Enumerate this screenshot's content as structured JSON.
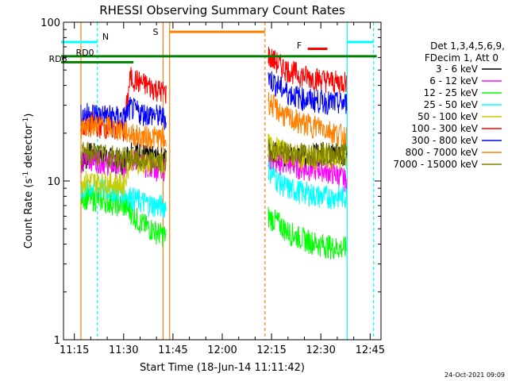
{
  "chart_data": {
    "type": "line",
    "title": "RHESSI Observing Summary Count Rates",
    "xlabel": "Start Time (18-Jun-14 11:11:42)",
    "ylabel_main": "Count Rate (s",
    "ylabel_sup": "-1",
    "ylabel_tail": " detector",
    "ylabel_sup2": "-1",
    "ylabel_end": ")",
    "yscale": "log",
    "ylim": [
      1,
      100
    ],
    "x_ticks": [
      "11:15",
      "11:30",
      "11:45",
      "12:00",
      "12:15",
      "12:30",
      "12:45"
    ],
    "y_ticks": [
      "1",
      "10",
      "100"
    ],
    "legend_header": [
      "Det 1,3,4,5,6,9,",
      "FDecim 1, Att 0"
    ],
    "legend": [
      {
        "label": "3 - 6 keV",
        "color": "#000000"
      },
      {
        "label": "6 - 12 keV",
        "color": "#ff00ff"
      },
      {
        "label": "12 - 25 keV",
        "color": "#00ff00"
      },
      {
        "label": "25 - 50 keV",
        "color": "#00ffff"
      },
      {
        "label": "50 - 100 keV",
        "color": "#cccc00"
      },
      {
        "label": "100 - 300 keV",
        "color": "#ff0000"
      },
      {
        "label": "300 - 800 keV",
        "color": "#0000ff"
      },
      {
        "label": "800 - 7000 keV",
        "color": "#ff8000"
      },
      {
        "label": "7000 - 15000 keV",
        "color": "#808000"
      }
    ],
    "flags": [
      {
        "label": "N",
        "color": "#00ffff"
      },
      {
        "label": "S",
        "color": "#ff8000"
      },
      {
        "label": "F",
        "color": "#ff0000"
      },
      {
        "label": "RD0",
        "color": "#008000"
      },
      {
        "label": "RD6",
        "color": "#008000"
      }
    ],
    "series": [
      {
        "name": "3 - 6 keV",
        "color": "#000000",
        "segments": [
          {
            "x": [
              "11:17",
              "11:20",
              "11:25",
              "11:30",
              "11:32",
              "11:35",
              "11:40",
              "11:43"
            ],
            "y": [
              13,
              15,
              14,
              13,
              16,
              15,
              14,
              14
            ]
          },
          {
            "x": [
              "12:14",
              "12:17",
              "12:20",
              "12:25",
              "12:30",
              "12:35",
              "12:38"
            ],
            "y": [
              16,
              15,
              14,
              14,
              15,
              15,
              15
            ]
          }
        ]
      },
      {
        "name": "6 - 12 keV",
        "color": "#ff00ff",
        "segments": [
          {
            "x": [
              "11:17",
              "11:20",
              "11:25",
              "11:30",
              "11:32",
              "11:35",
              "11:40",
              "11:43"
            ],
            "y": [
              13,
              14,
              13,
              12,
              14,
              13,
              12,
              12
            ]
          },
          {
            "x": [
              "12:14",
              "12:17",
              "12:20",
              "12:25",
              "12:30",
              "12:35",
              "12:38"
            ],
            "y": [
              14,
              13,
              13,
              12,
              12,
              11,
              10
            ]
          }
        ]
      },
      {
        "name": "12 - 25 keV",
        "color": "#00ff00",
        "segments": [
          {
            "x": [
              "11:17",
              "11:20",
              "11:25",
              "11:30",
              "11:32",
              "11:35",
              "11:40",
              "11:43"
            ],
            "y": [
              8,
              7.8,
              7.5,
              7,
              6.5,
              5.5,
              4.8,
              4.5
            ]
          },
          {
            "x": [
              "12:14",
              "12:17",
              "12:20",
              "12:25",
              "12:30",
              "12:35",
              "12:38"
            ],
            "y": [
              6,
              5.5,
              4.8,
              4.3,
              4.0,
              3.8,
              3.8
            ]
          }
        ]
      },
      {
        "name": "25 - 50 keV",
        "color": "#00ffff",
        "segments": [
          {
            "x": [
              "11:17",
              "11:20",
              "11:25",
              "11:30",
              "11:32",
              "11:35",
              "11:40",
              "11:43"
            ],
            "y": [
              9,
              9.2,
              9,
              8.5,
              8,
              7.5,
              7,
              7
            ]
          },
          {
            "x": [
              "12:14",
              "12:17",
              "12:20",
              "12:25",
              "12:30",
              "12:35",
              "12:38"
            ],
            "y": [
              12,
              10,
              9,
              8.5,
              8,
              8,
              8
            ]
          }
        ]
      },
      {
        "name": "50 - 100 keV",
        "color": "#cccc00",
        "segments": [
          {
            "x": [
              "11:17",
              "11:20",
              "11:25",
              "11:30",
              "11:32",
              "11:35",
              "11:40",
              "11:43"
            ],
            "y": [
              10,
              10,
              9.8,
              9.5,
              14,
              13,
              13,
              13
            ]
          },
          {
            "x": [
              "12:14",
              "12:17",
              "12:20",
              "12:25",
              "12:30",
              "12:35",
              "12:38"
            ],
            "y": [
              17,
              16,
              15,
              14,
              14,
              14,
              14
            ]
          }
        ]
      },
      {
        "name": "100 - 300 keV",
        "color": "#ff0000",
        "segments": [
          {
            "x": [
              "11:17",
              "11:20",
              "11:25",
              "11:30",
              "11:32",
              "11:35",
              "11:40",
              "11:43"
            ],
            "y": [
              22,
              23,
              22,
              21,
              45,
              42,
              38,
              36
            ]
          },
          {
            "x": [
              "12:14",
              "12:17",
              "12:20",
              "12:25",
              "12:30",
              "12:35",
              "12:38"
            ],
            "y": [
              62,
              55,
              50,
              46,
              44,
              42,
              43
            ]
          }
        ]
      },
      {
        "name": "300 - 800 keV",
        "color": "#0000ff",
        "segments": [
          {
            "x": [
              "11:17",
              "11:20",
              "11:25",
              "11:30",
              "11:32",
              "11:35",
              "11:40",
              "11:43"
            ],
            "y": [
              26,
              27,
              26,
              25,
              29,
              27,
              26,
              25
            ]
          },
          {
            "x": [
              "12:14",
              "12:17",
              "12:20",
              "12:25",
              "12:30",
              "12:35",
              "12:38"
            ],
            "y": [
              45,
              40,
              36,
              33,
              32,
              31,
              31
            ]
          }
        ]
      },
      {
        "name": "800 - 7000 keV",
        "color": "#ff8000",
        "segments": [
          {
            "x": [
              "11:17",
              "11:20",
              "11:25",
              "11:30",
              "11:32",
              "11:35",
              "11:40",
              "11:43"
            ],
            "y": [
              22,
              23,
              22,
              21,
              20,
              19,
              19,
              18
            ]
          },
          {
            "x": [
              "12:14",
              "12:17",
              "12:20",
              "12:25",
              "12:30",
              "12:35",
              "12:38"
            ],
            "y": [
              32,
              28,
              25,
              23,
              22,
              20,
              19
            ]
          }
        ]
      },
      {
        "name": "7000 - 15000 keV",
        "color": "#808000",
        "segments": [
          {
            "x": [
              "11:17",
              "11:20",
              "11:25",
              "11:30",
              "11:32",
              "11:35",
              "11:40",
              "11:43"
            ],
            "y": [
              15,
              15,
              14.5,
              14,
              14,
              13.5,
              13,
              13
            ]
          },
          {
            "x": [
              "12:14",
              "12:17",
              "12:20",
              "12:25",
              "12:30",
              "12:35",
              "12:38"
            ],
            "y": [
              16,
              15.5,
              15,
              15,
              15,
              15,
              15
            ]
          }
        ]
      }
    ],
    "bars": [
      {
        "name": "N",
        "color": "#00ffff",
        "x_start": "11:11",
        "x_end": "11:22",
        "y": 75
      },
      {
        "name": "S",
        "color": "#ff8000",
        "x_start": "11:44",
        "x_end": "12:13",
        "y": 87
      },
      {
        "name": "F",
        "color": "#ff0000",
        "x_start": "12:26",
        "x_end": "12:32",
        "y": 68
      },
      {
        "name": "N",
        "color": "#00ffff",
        "x_start": "12:38",
        "x_end": "12:46",
        "y": 75
      },
      {
        "name": "RD0",
        "color": "#008000",
        "x_start": "11:11",
        "x_end": "12:47",
        "y": 61
      },
      {
        "name": "RD6",
        "color": "#008000",
        "x_start": "11:11",
        "x_end": "11:33",
        "y": 56
      }
    ],
    "vlines": [
      {
        "x": "11:11",
        "color": "#00ffff",
        "dash": false
      },
      {
        "x": "11:22",
        "color": "#00ffff",
        "dash": true
      },
      {
        "x": "11:17",
        "color": "#ff8000",
        "dash": false
      },
      {
        "x": "11:42",
        "color": "#ff8000",
        "dash": false
      },
      {
        "x": "11:44",
        "color": "#ff8000",
        "dash": false
      },
      {
        "x": "12:13",
        "color": "#ff8000",
        "dash": true
      },
      {
        "x": "12:38",
        "color": "#00ffff",
        "dash": false
      },
      {
        "x": "12:46",
        "color": "#00ffff",
        "dash": true
      }
    ]
  },
  "footer_date": "24-Oct-2021 09:09"
}
